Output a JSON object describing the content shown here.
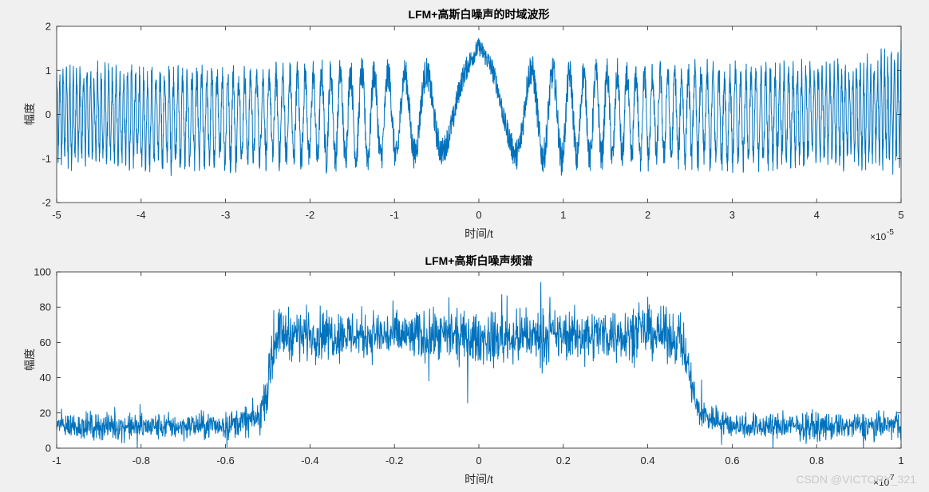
{
  "watermark": "CSDN @VICTORY_321",
  "chart_data": [
    {
      "type": "line",
      "title": "LFM+高斯白噪声的时域波形",
      "xlabel": "时间/t",
      "ylabel": "幅度",
      "x_exponent": "-5",
      "xlim": [
        -5,
        5
      ],
      "ylim": [
        -2,
        2
      ],
      "xticks": [
        -5,
        -4,
        -3,
        -2,
        -1,
        0,
        1,
        2,
        3,
        4,
        5
      ],
      "xtick_labels": [
        "-5",
        "-4",
        "-3",
        "-2",
        "-1",
        "0",
        "1",
        "2",
        "3",
        "4",
        "5"
      ],
      "yticks": [
        -2,
        -1,
        0,
        1,
        2
      ],
      "ytick_labels": [
        "-2",
        "-1",
        "0",
        "1",
        "2"
      ],
      "grid": false,
      "color": "#0072bd",
      "series": [
        {
          "x": [
            -5,
            -4.5,
            -4,
            -3.5,
            -3,
            -2.5,
            -2,
            -1.5,
            -1,
            -0.5,
            -0.3,
            -0.15,
            0,
            0.15,
            0.3,
            0.5,
            1,
            1.5,
            2,
            2.5,
            3,
            3.5,
            4,
            4.5,
            5
          ],
          "y_upper": [
            1.2,
            1.25,
            1.2,
            1.2,
            1.25,
            1.2,
            1.3,
            1.35,
            1.3,
            1.3,
            0.9,
            1.35,
            1.75,
            1.35,
            0.7,
            1.45,
            1.3,
            1.3,
            1.25,
            1.3,
            1.25,
            1.3,
            1.3,
            1.35,
            1.7
          ],
          "y_lower": [
            -1.3,
            -1.3,
            -1.35,
            -1.45,
            -1.4,
            -1.3,
            -1.4,
            -1.35,
            -1.35,
            -1.15,
            -1.2,
            -0.6,
            0.3,
            -0.4,
            -1.15,
            -1.3,
            -1.4,
            -1.35,
            -1.35,
            -1.3,
            -1.4,
            -1.35,
            -1.3,
            -1.35,
            -1.4
          ]
        }
      ]
    },
    {
      "type": "line",
      "title": "LFM+高斯白噪声频谱",
      "xlabel": "时间/t",
      "ylabel": "幅度",
      "x_exponent": "7",
      "xlim": [
        -1,
        1
      ],
      "ylim": [
        0,
        100
      ],
      "xticks": [
        -1,
        -0.8,
        -0.6,
        -0.4,
        -0.2,
        0,
        0.2,
        0.4,
        0.6,
        0.8,
        1
      ],
      "xtick_labels": [
        "-1",
        "-0.8",
        "-0.6",
        "-0.4",
        "-0.2",
        "0",
        "0.2",
        "0.4",
        "0.6",
        "0.8",
        "1"
      ],
      "yticks": [
        0,
        20,
        40,
        60,
        80,
        100
      ],
      "ytick_labels": [
        "0",
        "20",
        "40",
        "60",
        "80",
        "100"
      ],
      "grid": false,
      "color": "#0072bd",
      "series": [
        {
          "x": [
            -1,
            -0.8,
            -0.6,
            -0.52,
            -0.5,
            -0.48,
            -0.4,
            -0.2,
            0,
            0.2,
            0.4,
            0.48,
            0.5,
            0.52,
            0.6,
            0.8,
            1
          ],
          "y_mean": [
            13,
            12,
            13,
            17,
            35,
            65,
            65,
            64,
            62,
            64,
            66,
            62,
            40,
            20,
            13,
            12,
            13
          ],
          "y_spread": [
            8,
            8,
            8,
            10,
            14,
            15,
            15,
            15,
            15,
            15,
            15,
            15,
            14,
            10,
            8,
            8,
            8
          ]
        }
      ]
    }
  ]
}
